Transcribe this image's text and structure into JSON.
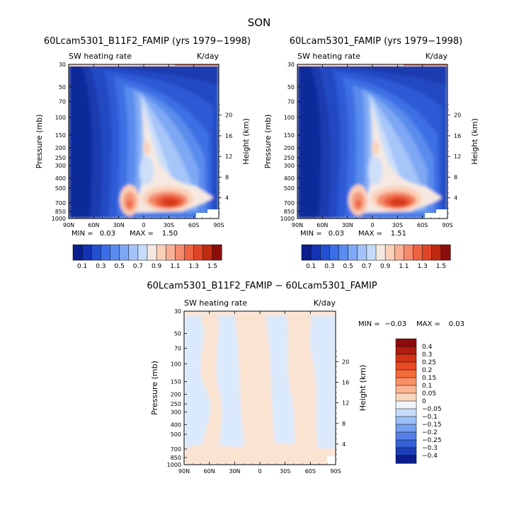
{
  "figure": {
    "title": "SON"
  },
  "chart_data": [
    {
      "type": "heatmap",
      "title": "60Lcam5301_B11F2_FAMIP (yrs 1979−1998)",
      "subtitle_left": "SW heating rate",
      "subtitle_right": "K/day",
      "ylabel": "Pressure (mb)",
      "y2label": "Height (km)",
      "x_ticks": [
        "90N",
        "60N",
        "30N",
        "0",
        "30S",
        "60S",
        "90S"
      ],
      "y_ticks": [
        "30",
        "50",
        "70",
        "100",
        "150",
        "200",
        "250",
        "300",
        "400",
        "500",
        "700",
        "850",
        "1000"
      ],
      "y2_ticks": [
        "20",
        "16",
        "12",
        "8",
        "4"
      ],
      "min_text": "MIN =",
      "min_value": "0.03",
      "max_text": "MAX =",
      "max_value": "1.50",
      "colorbar_levels": [
        "0.1",
        "0.3",
        "0.5",
        "0.7",
        "0.9",
        "1.1",
        "1.3",
        "1.5"
      ],
      "colorbar_colors": [
        "#0a1e8c",
        "#1433b4",
        "#2350d2",
        "#3a6ee6",
        "#5a8cf0",
        "#7ea8f5",
        "#a3c3f8",
        "#c6dbfa",
        "#f4e8e0",
        "#fbcfb8",
        "#f9b094",
        "#f58a6c",
        "#ee6443",
        "#e04426",
        "#c02a12",
        "#8c0c0c"
      ]
    },
    {
      "type": "heatmap",
      "title": "60Lcam5301_FAMIP (yrs 1979−1998)",
      "subtitle_left": "SW heating rate",
      "subtitle_right": "K/day",
      "ylabel": "Pressure (mb)",
      "y2label": "Height (km)",
      "x_ticks": [
        "90N",
        "60N",
        "30N",
        "0",
        "30S",
        "60S",
        "90S"
      ],
      "y_ticks": [
        "30",
        "50",
        "70",
        "100",
        "150",
        "200",
        "250",
        "300",
        "400",
        "500",
        "700",
        "850",
        "1000"
      ],
      "y2_ticks": [
        "20",
        "16",
        "12",
        "8",
        "4"
      ],
      "min_text": "MIN =",
      "min_value": "0.03",
      "max_text": "MAX =",
      "max_value": "1.51",
      "colorbar_levels": [
        "0.1",
        "0.3",
        "0.5",
        "0.7",
        "0.9",
        "1.1",
        "1.3",
        "1.5"
      ],
      "colorbar_colors": [
        "#0a1e8c",
        "#1433b4",
        "#2350d2",
        "#3a6ee6",
        "#5a8cf0",
        "#7ea8f5",
        "#a3c3f8",
        "#c6dbfa",
        "#f4e8e0",
        "#fbcfb8",
        "#f9b094",
        "#f58a6c",
        "#ee6443",
        "#e04426",
        "#c02a12",
        "#8c0c0c"
      ]
    },
    {
      "type": "heatmap",
      "title": "60Lcam5301_B11F2_FAMIP − 60Lcam5301_FAMIP",
      "subtitle_left": "SW heating rate",
      "subtitle_right": "K/day",
      "ylabel": "Pressure (mb)",
      "y2label": "Height (km)",
      "x_ticks": [
        "90N",
        "60N",
        "30N",
        "0",
        "30S",
        "60S",
        "90S"
      ],
      "y_ticks": [
        "30",
        "50",
        "70",
        "100",
        "150",
        "200",
        "250",
        "300",
        "400",
        "500",
        "700",
        "850",
        "1000"
      ],
      "y2_ticks": [
        "20",
        "16",
        "12",
        "8",
        "4"
      ],
      "min_text": "MIN =",
      "min_value": "−0.03",
      "max_text": "MAX =",
      "max_value": "0.03",
      "colorbar_levels": [
        "0.4",
        "0.3",
        "0.25",
        "0.2",
        "0.15",
        "0.1",
        "0.05",
        "0",
        "−0.05",
        "−0.1",
        "−0.15",
        "−0.2",
        "−0.25",
        "−0.3",
        "−0.4"
      ],
      "colorbar_colors": [
        "#8c0c0c",
        "#b01c10",
        "#d23218",
        "#ea4a24",
        "#f66a3a",
        "#f98f64",
        "#fbb592",
        "#fbd7c0",
        "#eef3fa",
        "#c6dcfa",
        "#9dbff6",
        "#78a0f0",
        "#5680e6",
        "#3560d6",
        "#1c3fba",
        "#0a1e8c"
      ]
    }
  ]
}
